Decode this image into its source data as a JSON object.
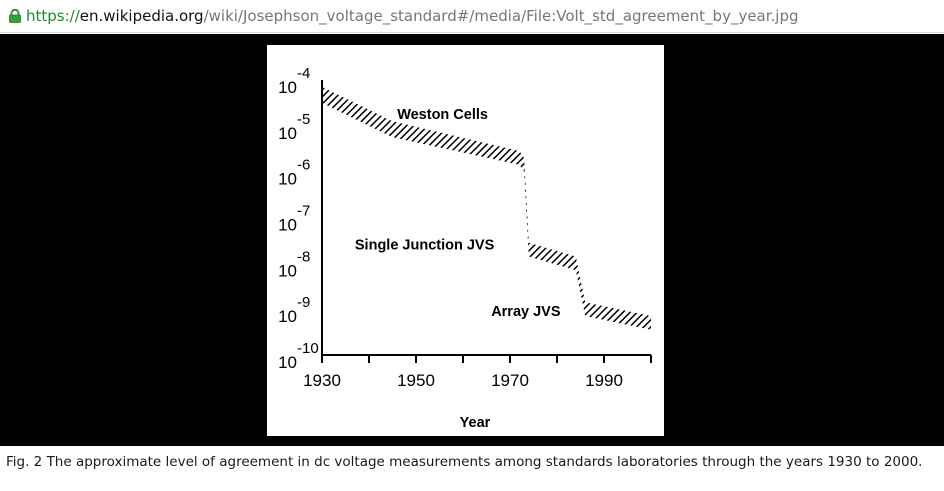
{
  "browser": {
    "url_scheme": "https://",
    "url_host": "en.wikipedia.org",
    "url_path": "/wiki/Josephson_voltage_standard#/media/File:Volt_std_agreement_by_year.jpg",
    "icon": "lock-icon"
  },
  "caption": "Fig. 2 The approximate level of agreement in dc voltage measurements among standards laboratories through the years 1930 to 2000.",
  "chart_data": {
    "type": "area",
    "title": "",
    "xlabel": "Year",
    "ylabel": "",
    "xlim": [
      1930,
      2000
    ],
    "ylim_log10": [
      -10,
      -4
    ],
    "y_scale": "log",
    "x_ticks": [
      {
        "value": 1930,
        "label": "1930"
      },
      {
        "value": 1950,
        "label": "1950"
      },
      {
        "value": 1970,
        "label": "1970"
      },
      {
        "value": 1990,
        "label": "1990"
      }
    ],
    "y_ticks": [
      {
        "log10": -4,
        "base": "10",
        "exp": "-4"
      },
      {
        "log10": -5,
        "base": "10",
        "exp": "-5"
      },
      {
        "log10": -6,
        "base": "10",
        "exp": "-6"
      },
      {
        "log10": -7,
        "base": "10",
        "exp": "-7"
      },
      {
        "log10": -8,
        "base": "10",
        "exp": "-8"
      },
      {
        "log10": -9,
        "base": "10",
        "exp": "-9"
      },
      {
        "log10": -10,
        "base": "10",
        "exp": "-10"
      }
    ],
    "band": [
      {
        "x": 1930,
        "y_upper_log10": -4.15,
        "y_lower_log10": -4.5
      },
      {
        "x": 1945,
        "y_upper_log10": -4.9,
        "y_lower_log10": -5.25
      },
      {
        "x": 1972,
        "y_upper_log10": -5.55,
        "y_lower_log10": -5.85
      },
      {
        "x": 1973,
        "y_upper_log10": -5.7,
        "y_lower_log10": -6.0
      },
      {
        "x": 1974,
        "y_upper_log10": -7.55,
        "y_lower_log10": -7.85
      },
      {
        "x": 1984,
        "y_upper_log10": -7.85,
        "y_lower_log10": -8.15
      },
      {
        "x": 1986,
        "y_upper_log10": -8.85,
        "y_lower_log10": -9.15
      },
      {
        "x": 2000,
        "y_upper_log10": -9.15,
        "y_lower_log10": -9.45
      }
    ],
    "annotations": [
      {
        "text": "Weston Cells",
        "x": 1946,
        "y_log10": -4.85
      },
      {
        "text": "Single Junction JVS",
        "x": 1937,
        "y_log10": -7.7
      },
      {
        "text": "Array JVS",
        "x": 1966,
        "y_log10": -9.15
      }
    ]
  }
}
